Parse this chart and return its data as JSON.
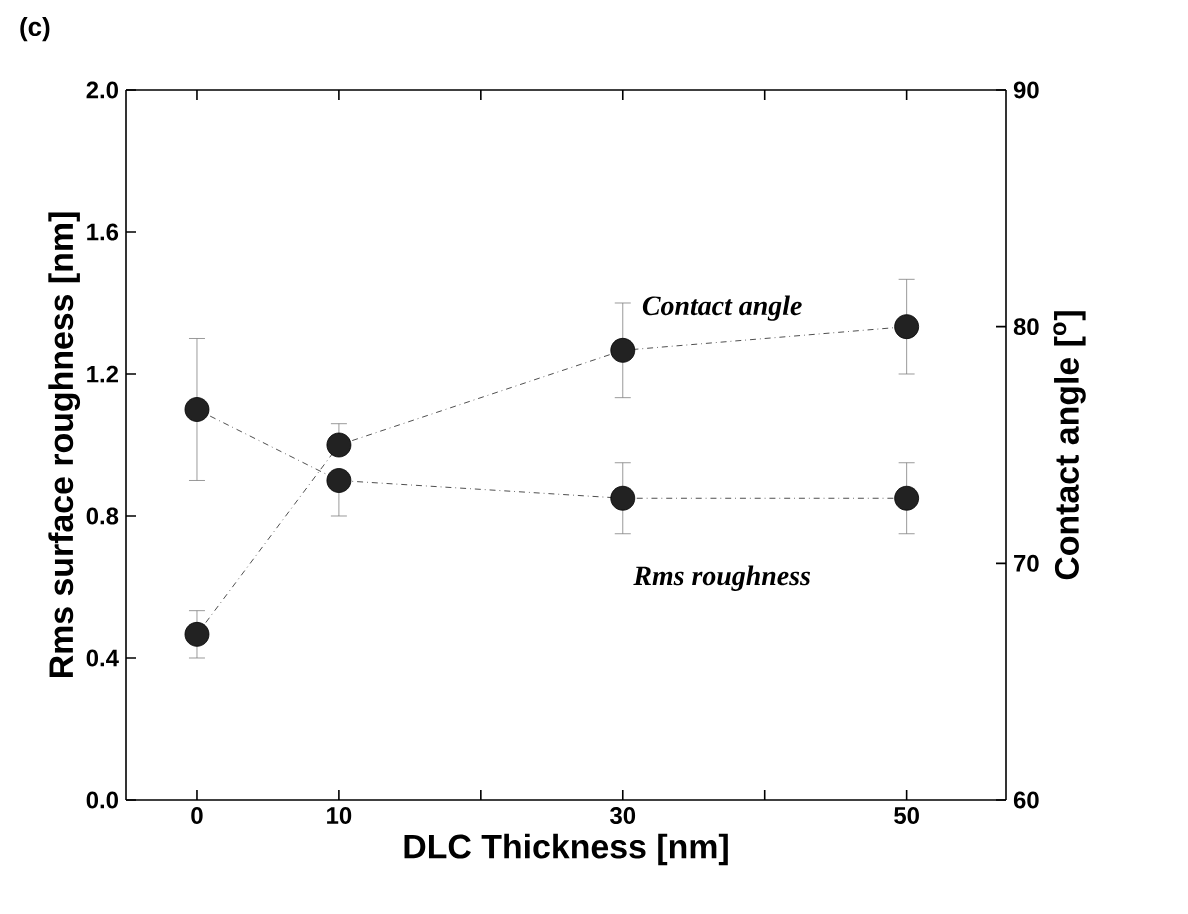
{
  "chart_data": {
    "type": "line",
    "xlabel": "DLC Thickness [nm]",
    "ylabel": "Rms surface roughness [nm]",
    "y2label": "Contact angle [$^{o}$]",
    "annotations": [
      "(c)",
      "Contact angle",
      "Rms roughness"
    ],
    "xlim": [
      -5,
      57
    ],
    "xticks": [
      0,
      10,
      {
        "value": 20,
        "label": null
      },
      30,
      {
        "value": 40,
        "label": null
      },
      50
    ],
    "ylim": [
      0,
      2
    ],
    "yticks": [
      {
        "value": 0,
        "label": "0.0"
      },
      0.4,
      0.8,
      1.2,
      1.6,
      {
        "value": 2,
        "label": "2.0"
      }
    ],
    "y2lim": [
      60,
      90
    ],
    "y2ticks": [
      60,
      70,
      80,
      90
    ],
    "marker": "circle",
    "line_style": "dashed",
    "grid": false,
    "legend": false,
    "series": [
      {
        "color": "#222222",
        "x": [
          0,
          10,
          30,
          50
        ],
        "values": [
          1.1,
          0.9,
          0.85,
          0.85
        ],
        "errors": [
          0.2,
          [
            0.8,
            0.9
          ],
          0.1,
          0.1
        ]
      },
      {
        "color": "#222222",
        "axis": "y2",
        "x": [
          0,
          10,
          30,
          50
        ],
        "values": [
          67,
          75,
          79,
          80
        ],
        "errors": [
          1,
          [
            75,
            75.9
          ],
          2,
          2
        ]
      }
    ]
  }
}
